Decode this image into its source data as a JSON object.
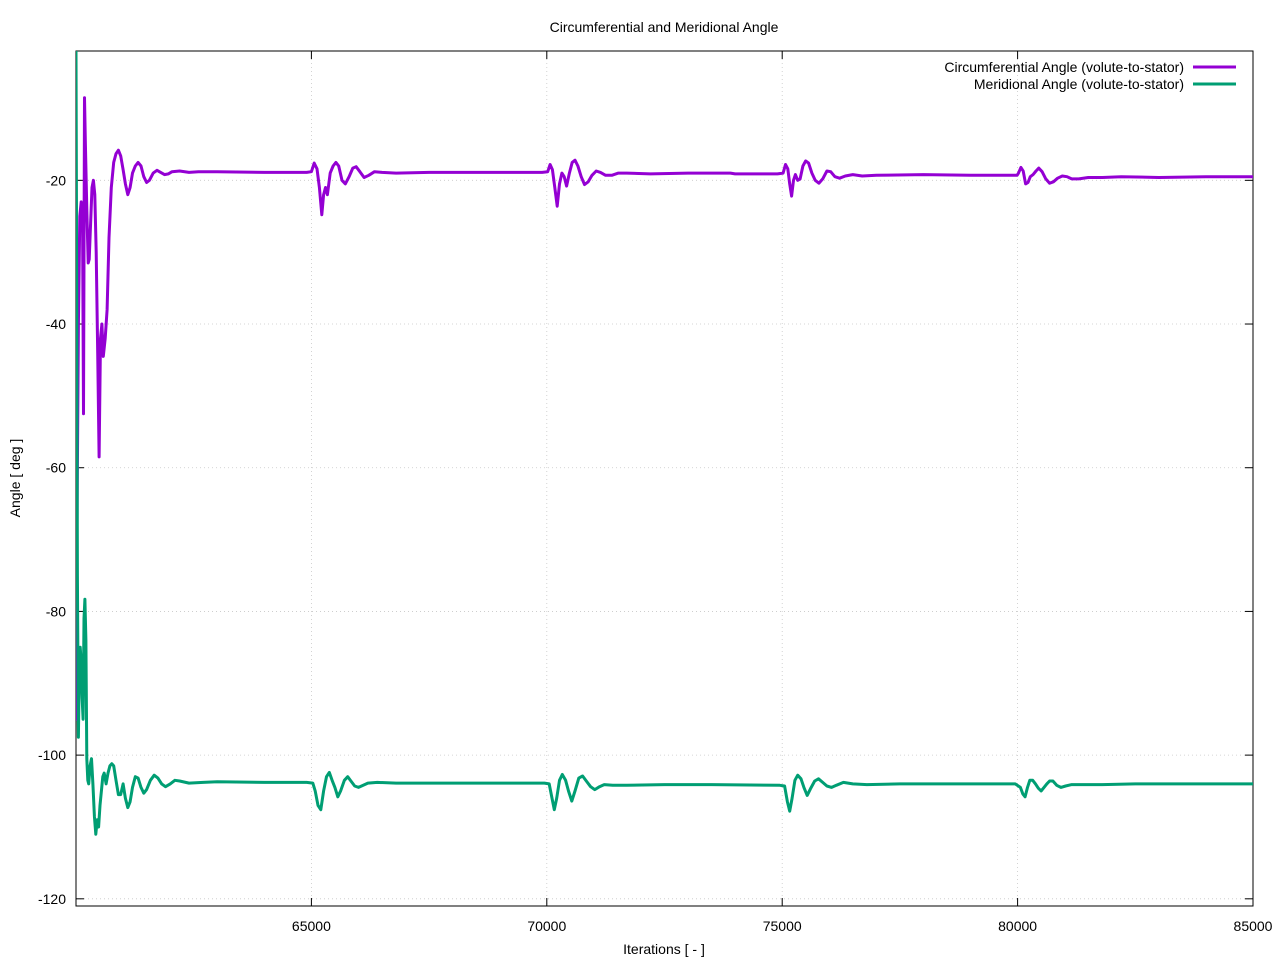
{
  "chart_data": {
    "type": "line",
    "title": "Circumferential and Meridional Angle",
    "xlabel": "Iterations [ - ]",
    "ylabel": "Angle [ deg ]",
    "xlim": [
      60000,
      85000
    ],
    "ylim": [
      -121,
      -2
    ],
    "xticks": [
      65000,
      70000,
      75000,
      80000,
      85000
    ],
    "yticks": [
      -20,
      -40,
      -60,
      -80,
      -100,
      -120
    ],
    "grid": true,
    "legend_position": "top-right",
    "series": [
      {
        "name": "Circumferential Angle (volute-to-stator)",
        "color": "#9400d3",
        "points": [
          [
            60000,
            -95
          ],
          [
            60020,
            -70
          ],
          [
            60050,
            -40
          ],
          [
            60080,
            -25
          ],
          [
            60110,
            -23
          ],
          [
            60140,
            -27
          ],
          [
            60160,
            -52.5
          ],
          [
            60180,
            -8.5
          ],
          [
            60200,
            -15
          ],
          [
            60230,
            -24
          ],
          [
            60260,
            -31.5
          ],
          [
            60280,
            -31
          ],
          [
            60310,
            -26
          ],
          [
            60340,
            -21
          ],
          [
            60370,
            -20
          ],
          [
            60400,
            -22
          ],
          [
            60430,
            -30
          ],
          [
            60460,
            -44
          ],
          [
            60490,
            -58.5
          ],
          [
            60520,
            -42
          ],
          [
            60550,
            -40
          ],
          [
            60580,
            -44.5
          ],
          [
            60620,
            -42
          ],
          [
            60660,
            -38
          ],
          [
            60700,
            -28
          ],
          [
            60750,
            -21
          ],
          [
            60800,
            -17.5
          ],
          [
            60850,
            -16.3
          ],
          [
            60900,
            -15.8
          ],
          [
            60950,
            -16.6
          ],
          [
            61000,
            -18.5
          ],
          [
            61050,
            -20.5
          ],
          [
            61100,
            -22
          ],
          [
            61150,
            -21
          ],
          [
            61200,
            -19
          ],
          [
            61260,
            -18
          ],
          [
            61320,
            -17.5
          ],
          [
            61380,
            -18
          ],
          [
            61440,
            -19.5
          ],
          [
            61500,
            -20.3
          ],
          [
            61560,
            -20
          ],
          [
            61640,
            -19
          ],
          [
            61720,
            -18.6
          ],
          [
            61800,
            -18.9
          ],
          [
            61880,
            -19.2
          ],
          [
            61960,
            -19.1
          ],
          [
            62040,
            -18.8
          ],
          [
            62200,
            -18.7
          ],
          [
            62400,
            -18.9
          ],
          [
            62600,
            -18.8
          ],
          [
            63000,
            -18.8
          ],
          [
            64000,
            -18.9
          ],
          [
            64900,
            -18.9
          ],
          [
            65000,
            -18.8
          ],
          [
            65060,
            -17.6
          ],
          [
            65120,
            -18.4
          ],
          [
            65170,
            -21
          ],
          [
            65220,
            -24.8
          ],
          [
            65260,
            -22
          ],
          [
            65300,
            -21
          ],
          [
            65340,
            -22
          ],
          [
            65400,
            -19
          ],
          [
            65460,
            -18
          ],
          [
            65520,
            -17.5
          ],
          [
            65580,
            -18
          ],
          [
            65650,
            -20
          ],
          [
            65720,
            -20.5
          ],
          [
            65800,
            -19.5
          ],
          [
            65880,
            -18.3
          ],
          [
            65950,
            -18.1
          ],
          [
            66030,
            -18.8
          ],
          [
            66120,
            -19.6
          ],
          [
            66220,
            -19.3
          ],
          [
            66340,
            -18.8
          ],
          [
            66500,
            -18.9
          ],
          [
            66800,
            -19.0
          ],
          [
            67500,
            -18.9
          ],
          [
            68500,
            -18.9
          ],
          [
            69900,
            -18.9
          ],
          [
            70020,
            -18.8
          ],
          [
            70070,
            -17.8
          ],
          [
            70120,
            -18.5
          ],
          [
            70170,
            -21
          ],
          [
            70220,
            -23.6
          ],
          [
            70270,
            -20.5
          ],
          [
            70320,
            -19
          ],
          [
            70370,
            -19.5
          ],
          [
            70420,
            -20.8
          ],
          [
            70480,
            -19
          ],
          [
            70540,
            -17.5
          ],
          [
            70600,
            -17.2
          ],
          [
            70660,
            -18
          ],
          [
            70730,
            -19.5
          ],
          [
            70800,
            -20.6
          ],
          [
            70880,
            -20.2
          ],
          [
            70960,
            -19.3
          ],
          [
            71050,
            -18.7
          ],
          [
            71140,
            -18.9
          ],
          [
            71250,
            -19.3
          ],
          [
            71380,
            -19.3
          ],
          [
            71520,
            -19
          ],
          [
            71700,
            -19.0
          ],
          [
            72200,
            -19.1
          ],
          [
            73000,
            -19.0
          ],
          [
            73900,
            -19.0
          ],
          [
            74000,
            -19.1
          ],
          [
            74900,
            -19.1
          ],
          [
            75020,
            -19
          ],
          [
            75070,
            -17.8
          ],
          [
            75120,
            -18.4
          ],
          [
            75160,
            -20.5
          ],
          [
            75200,
            -22.2
          ],
          [
            75240,
            -20
          ],
          [
            75280,
            -19.2
          ],
          [
            75330,
            -20
          ],
          [
            75380,
            -19.8
          ],
          [
            75440,
            -18
          ],
          [
            75500,
            -17.3
          ],
          [
            75560,
            -17.6
          ],
          [
            75630,
            -19
          ],
          [
            75700,
            -20
          ],
          [
            75780,
            -20.4
          ],
          [
            75860,
            -19.8
          ],
          [
            75950,
            -18.7
          ],
          [
            76030,
            -18.8
          ],
          [
            76120,
            -19.5
          ],
          [
            76220,
            -19.7
          ],
          [
            76340,
            -19.4
          ],
          [
            76500,
            -19.2
          ],
          [
            76700,
            -19.4
          ],
          [
            77000,
            -19.3
          ],
          [
            78000,
            -19.2
          ],
          [
            79000,
            -19.3
          ],
          [
            79990,
            -19.3
          ],
          [
            80020,
            -19
          ],
          [
            80070,
            -18.2
          ],
          [
            80120,
            -18.7
          ],
          [
            80170,
            -20.5
          ],
          [
            80220,
            -20.3
          ],
          [
            80270,
            -19.5
          ],
          [
            80330,
            -19.2
          ],
          [
            80390,
            -18.7
          ],
          [
            80450,
            -18.3
          ],
          [
            80520,
            -18.8
          ],
          [
            80600,
            -19.8
          ],
          [
            80680,
            -20.4
          ],
          [
            80760,
            -20.2
          ],
          [
            80850,
            -19.7
          ],
          [
            80950,
            -19.4
          ],
          [
            81050,
            -19.5
          ],
          [
            81150,
            -19.8
          ],
          [
            81300,
            -19.8
          ],
          [
            81500,
            -19.6
          ],
          [
            81800,
            -19.6
          ],
          [
            82200,
            -19.5
          ],
          [
            83000,
            -19.6
          ],
          [
            84000,
            -19.5
          ],
          [
            85000,
            -19.5
          ]
        ]
      },
      {
        "name": "Meridional Angle (volute-to-stator)",
        "color": "#009e73",
        "points": [
          [
            60000,
            -2
          ],
          [
            60015,
            -35
          ],
          [
            60030,
            -75
          ],
          [
            60050,
            -97.5
          ],
          [
            60070,
            -88
          ],
          [
            60090,
            -85
          ],
          [
            60110,
            -87
          ],
          [
            60130,
            -92
          ],
          [
            60150,
            -95
          ],
          [
            60170,
            -81
          ],
          [
            60190,
            -78.3
          ],
          [
            60210,
            -84
          ],
          [
            60230,
            -100.5
          ],
          [
            60250,
            -103.5
          ],
          [
            60270,
            -104
          ],
          [
            60300,
            -101.5
          ],
          [
            60330,
            -100.5
          ],
          [
            60360,
            -104
          ],
          [
            60390,
            -108.5
          ],
          [
            60420,
            -111
          ],
          [
            60450,
            -109
          ],
          [
            60480,
            -110
          ],
          [
            60510,
            -107
          ],
          [
            60540,
            -105
          ],
          [
            60570,
            -103
          ],
          [
            60600,
            -102.5
          ],
          [
            60640,
            -104
          ],
          [
            60680,
            -102.5
          ],
          [
            60720,
            -101.5
          ],
          [
            60760,
            -101.2
          ],
          [
            60800,
            -101.5
          ],
          [
            60850,
            -103.5
          ],
          [
            60900,
            -105.5
          ],
          [
            60950,
            -105.5
          ],
          [
            61000,
            -104
          ],
          [
            61050,
            -106
          ],
          [
            61100,
            -107.3
          ],
          [
            61150,
            -106.5
          ],
          [
            61200,
            -104.5
          ],
          [
            61260,
            -103
          ],
          [
            61320,
            -103.2
          ],
          [
            61380,
            -104.5
          ],
          [
            61440,
            -105.3
          ],
          [
            61500,
            -104.8
          ],
          [
            61580,
            -103.5
          ],
          [
            61660,
            -102.8
          ],
          [
            61740,
            -103.2
          ],
          [
            61820,
            -104
          ],
          [
            61900,
            -104.4
          ],
          [
            62000,
            -104
          ],
          [
            62100,
            -103.5
          ],
          [
            62200,
            -103.6
          ],
          [
            62400,
            -103.9
          ],
          [
            62700,
            -103.8
          ],
          [
            63000,
            -103.7
          ],
          [
            64000,
            -103.8
          ],
          [
            64900,
            -103.8
          ],
          [
            65030,
            -103.9
          ],
          [
            65080,
            -105
          ],
          [
            65140,
            -107
          ],
          [
            65200,
            -107.6
          ],
          [
            65260,
            -105
          ],
          [
            65320,
            -103
          ],
          [
            65380,
            -102.4
          ],
          [
            65440,
            -103.5
          ],
          [
            65500,
            -104.5
          ],
          [
            65560,
            -105.8
          ],
          [
            65620,
            -105
          ],
          [
            65700,
            -103.5
          ],
          [
            65770,
            -103
          ],
          [
            65840,
            -103.6
          ],
          [
            65920,
            -104.3
          ],
          [
            66000,
            -104.5
          ],
          [
            66100,
            -104.2
          ],
          [
            66200,
            -103.9
          ],
          [
            66400,
            -103.8
          ],
          [
            66800,
            -103.9
          ],
          [
            67500,
            -103.9
          ],
          [
            68500,
            -103.9
          ],
          [
            69950,
            -103.9
          ],
          [
            70050,
            -104
          ],
          [
            70110,
            -106
          ],
          [
            70160,
            -107.6
          ],
          [
            70210,
            -106
          ],
          [
            70270,
            -103.5
          ],
          [
            70330,
            -102.7
          ],
          [
            70400,
            -103.5
          ],
          [
            70460,
            -105
          ],
          [
            70530,
            -106.4
          ],
          [
            70600,
            -105
          ],
          [
            70680,
            -103.2
          ],
          [
            70760,
            -102.9
          ],
          [
            70840,
            -103.6
          ],
          [
            70930,
            -104.4
          ],
          [
            71020,
            -104.8
          ],
          [
            71120,
            -104.4
          ],
          [
            71220,
            -104.1
          ],
          [
            71400,
            -104.2
          ],
          [
            71700,
            -104.2
          ],
          [
            72500,
            -104.1
          ],
          [
            73500,
            -104.1
          ],
          [
            74950,
            -104.2
          ],
          [
            75050,
            -104.3
          ],
          [
            75110,
            -106.5
          ],
          [
            75160,
            -107.8
          ],
          [
            75210,
            -106
          ],
          [
            75270,
            -103.5
          ],
          [
            75330,
            -102.8
          ],
          [
            75400,
            -103.3
          ],
          [
            75460,
            -104.5
          ],
          [
            75530,
            -105.6
          ],
          [
            75600,
            -104.7
          ],
          [
            75690,
            -103.6
          ],
          [
            75770,
            -103.3
          ],
          [
            75860,
            -103.8
          ],
          [
            75950,
            -104.3
          ],
          [
            76050,
            -104.5
          ],
          [
            76150,
            -104.2
          ],
          [
            76300,
            -103.8
          ],
          [
            76500,
            -104
          ],
          [
            76800,
            -104.1
          ],
          [
            77500,
            -104
          ],
          [
            78500,
            -104
          ],
          [
            79950,
            -104
          ],
          [
            80060,
            -104.5
          ],
          [
            80110,
            -105.4
          ],
          [
            80160,
            -105.8
          ],
          [
            80210,
            -104.5
          ],
          [
            80260,
            -103.5
          ],
          [
            80320,
            -103.5
          ],
          [
            80380,
            -104
          ],
          [
            80440,
            -104.6
          ],
          [
            80500,
            -105
          ],
          [
            80560,
            -104.5
          ],
          [
            80620,
            -104
          ],
          [
            80680,
            -103.6
          ],
          [
            80750,
            -103.6
          ],
          [
            80830,
            -104.2
          ],
          [
            80920,
            -104.5
          ],
          [
            81020,
            -104.3
          ],
          [
            81150,
            -104.1
          ],
          [
            81400,
            -104.1
          ],
          [
            81800,
            -104.1
          ],
          [
            82500,
            -104
          ],
          [
            83500,
            -104
          ],
          [
            85000,
            -104
          ]
        ]
      }
    ]
  }
}
